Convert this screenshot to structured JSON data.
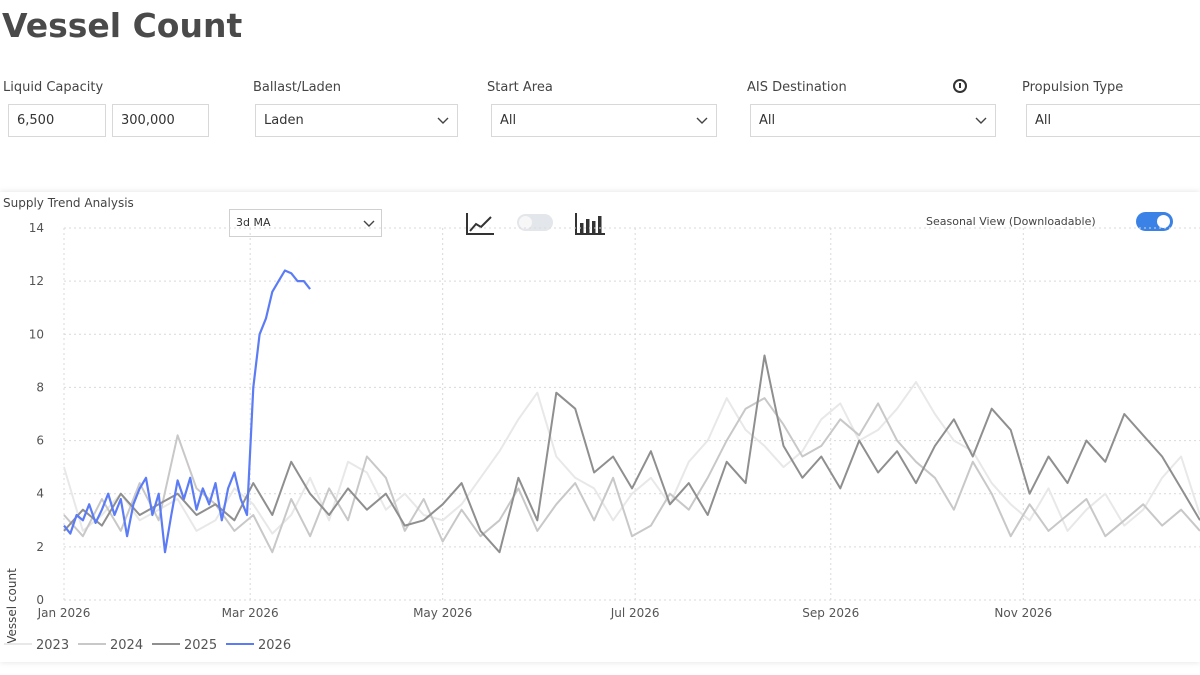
{
  "page": {
    "title": "Vessel Count"
  },
  "filters": {
    "liquid_capacity": {
      "label": "Liquid Capacity",
      "min": "6,500",
      "max": "300,000"
    },
    "ballast_laden": {
      "label": "Ballast/Laden",
      "value": "Laden"
    },
    "start_area": {
      "label": "Start Area",
      "value": "All"
    },
    "ais_destination": {
      "label": "AIS Destination",
      "value": "All"
    },
    "propulsion_type": {
      "label": "Propulsion Type",
      "value": "All"
    }
  },
  "panel": {
    "title": "Supply Trend Analysis",
    "ma_select": "3d MA",
    "seasonal_label": "Seasonal View (Downloadable)",
    "line_chart_toggle": false,
    "seasonal_view": true
  },
  "icons": [
    "info-icon",
    "line-chart-icon",
    "bar-chart-icon",
    "chevron-down-icon"
  ],
  "chart_data": {
    "type": "line",
    "ylabel": "Vessel count",
    "ylim": [
      0,
      14
    ],
    "yticks": [
      "0",
      "2",
      "4",
      "6",
      "8",
      "10",
      "12",
      "14"
    ],
    "x_tick_labels": [
      "Jan 2026",
      "Mar 2026",
      "May 2026",
      "Jul 2026",
      "Sep 2026",
      "Nov 2026"
    ],
    "x_tick_days": [
      0,
      59,
      120,
      181,
      243,
      304
    ],
    "xlim_days": [
      0,
      360
    ],
    "grid": true,
    "legend_position": "bottom-left",
    "series": [
      {
        "name": "2023",
        "color": "#e8e8e8",
        "x": [
          0,
          6,
          12,
          18,
          24,
          30,
          36,
          42,
          48,
          54,
          60,
          66,
          72,
          78,
          84,
          90,
          96,
          102,
          108,
          114,
          120,
          126,
          132,
          138,
          144,
          150,
          156,
          162,
          168,
          174,
          180,
          186,
          192,
          198,
          204,
          210,
          216,
          222,
          228,
          234,
          240,
          246,
          252,
          258,
          264,
          270,
          276,
          282,
          288,
          294,
          300,
          306,
          312,
          318,
          324,
          330,
          336,
          342,
          348,
          354,
          360
        ],
        "y": [
          5.0,
          2.6,
          3.2,
          4.0,
          3.0,
          3.4,
          3.8,
          2.6,
          3.0,
          4.2,
          3.6,
          2.5,
          3.2,
          4.6,
          3.0,
          5.2,
          4.8,
          3.4,
          4.0,
          3.2,
          3.0,
          3.6,
          4.6,
          5.6,
          6.8,
          7.8,
          5.4,
          4.6,
          4.2,
          3.0,
          4.0,
          4.6,
          3.6,
          5.2,
          6.0,
          7.6,
          6.4,
          5.8,
          5.0,
          5.6,
          6.8,
          7.4,
          6.0,
          6.4,
          7.2,
          8.2,
          7.0,
          6.0,
          5.6,
          4.4,
          3.6,
          3.0,
          4.2,
          2.6,
          3.4,
          4.0,
          2.8,
          3.4,
          4.6,
          5.4,
          3.2
        ]
      },
      {
        "name": "2024",
        "color": "#c8c8c8",
        "x": [
          0,
          6,
          12,
          18,
          24,
          30,
          36,
          42,
          48,
          54,
          60,
          66,
          72,
          78,
          84,
          90,
          96,
          102,
          108,
          114,
          120,
          126,
          132,
          138,
          144,
          150,
          156,
          162,
          168,
          174,
          180,
          186,
          192,
          198,
          204,
          210,
          216,
          222,
          228,
          234,
          240,
          246,
          252,
          258,
          264,
          270,
          276,
          282,
          288,
          294,
          300,
          306,
          312,
          318,
          324,
          330,
          336,
          342,
          348,
          354,
          360
        ],
        "y": [
          3.2,
          2.4,
          3.8,
          2.6,
          4.4,
          3.0,
          6.2,
          4.2,
          3.6,
          2.6,
          3.2,
          1.8,
          3.8,
          2.4,
          4.2,
          3.0,
          5.4,
          4.6,
          2.6,
          3.8,
          2.2,
          3.4,
          2.4,
          3.0,
          4.2,
          2.6,
          3.6,
          4.4,
          3.0,
          4.6,
          2.4,
          2.8,
          4.0,
          3.4,
          4.6,
          6.0,
          7.2,
          7.6,
          6.6,
          5.4,
          5.8,
          6.8,
          6.2,
          7.4,
          6.0,
          5.2,
          4.6,
          3.4,
          5.2,
          4.0,
          2.4,
          3.6,
          2.6,
          3.2,
          3.8,
          2.4,
          3.0,
          3.6,
          2.8,
          3.4,
          2.6
        ]
      },
      {
        "name": "2025",
        "color": "#8f8f8f",
        "x": [
          0,
          6,
          12,
          18,
          24,
          30,
          36,
          42,
          48,
          54,
          60,
          66,
          72,
          78,
          84,
          90,
          96,
          102,
          108,
          114,
          120,
          126,
          132,
          138,
          144,
          150,
          156,
          162,
          168,
          174,
          180,
          186,
          192,
          198,
          204,
          210,
          216,
          222,
          228,
          234,
          240,
          246,
          252,
          258,
          264,
          270,
          276,
          282,
          288,
          294,
          300,
          306,
          312,
          318,
          324,
          330,
          336,
          342,
          348,
          354,
          360
        ],
        "y": [
          2.6,
          3.4,
          2.8,
          4.0,
          3.2,
          3.6,
          4.0,
          3.2,
          3.6,
          3.0,
          4.4,
          3.2,
          5.2,
          4.0,
          3.2,
          4.2,
          3.4,
          4.0,
          2.8,
          3.0,
          3.6,
          4.4,
          2.6,
          1.8,
          4.6,
          3.0,
          7.8,
          7.2,
          4.8,
          5.4,
          4.2,
          5.6,
          3.6,
          4.4,
          3.2,
          5.2,
          4.4,
          9.2,
          5.8,
          4.6,
          5.4,
          4.2,
          6.0,
          4.8,
          5.6,
          4.4,
          5.8,
          6.8,
          5.4,
          7.2,
          6.4,
          4.0,
          5.4,
          4.4,
          6.0,
          5.2,
          7.0,
          6.2,
          5.4,
          4.2,
          3.0
        ]
      },
      {
        "name": "2026",
        "color": "#5b7cf5",
        "x": [
          0,
          2,
          4,
          6,
          8,
          10,
          12,
          14,
          16,
          18,
          20,
          22,
          24,
          26,
          28,
          30,
          32,
          34,
          36,
          38,
          40,
          42,
          44,
          46,
          48,
          50,
          52,
          54,
          56,
          58,
          60,
          62,
          64,
          66,
          68,
          70,
          72,
          74,
          76,
          78
        ],
        "y": [
          2.8,
          2.5,
          3.2,
          3.0,
          3.6,
          2.9,
          3.4,
          4.0,
          3.2,
          3.8,
          2.4,
          3.6,
          4.2,
          4.6,
          3.2,
          4.0,
          1.8,
          3.2,
          4.5,
          3.8,
          4.6,
          3.4,
          4.2,
          3.6,
          4.4,
          3.0,
          4.2,
          4.8,
          3.8,
          3.2,
          8.0,
          10.0,
          10.6,
          11.6,
          12.0,
          12.4,
          12.3,
          12.0,
          12.0,
          11.7
        ]
      }
    ]
  }
}
